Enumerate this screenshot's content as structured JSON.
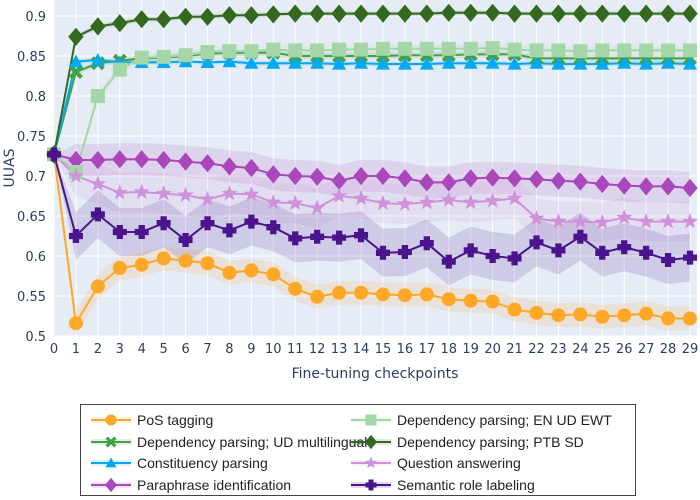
{
  "chart_data": {
    "type": "line",
    "title": "",
    "xlabel": "Fine-tuning checkpoints",
    "ylabel": "UUAS",
    "xlim": [
      0,
      29
    ],
    "ylim": [
      0.5,
      0.915
    ],
    "x": [
      0,
      1,
      2,
      3,
      4,
      5,
      6,
      7,
      8,
      9,
      10,
      11,
      12,
      13,
      14,
      15,
      16,
      17,
      18,
      19,
      20,
      21,
      22,
      23,
      24,
      25,
      26,
      27,
      28,
      29
    ],
    "xticks": [
      "0",
      "1",
      "2",
      "3",
      "4",
      "5",
      "6",
      "7",
      "8",
      "9",
      "10",
      "11",
      "12",
      "13",
      "14",
      "15",
      "16",
      "17",
      "18",
      "19",
      "20",
      "21",
      "22",
      "23",
      "24",
      "25",
      "26",
      "27",
      "28",
      "29"
    ],
    "yticks": [
      0.5,
      0.55,
      0.6,
      0.65,
      0.7,
      0.75,
      0.8,
      0.85,
      0.9
    ],
    "ytick_labels": [
      "0.5",
      "0.55",
      "0.6",
      "0.65",
      "0.7",
      "0.75",
      "0.8",
      "0.85",
      "0.9"
    ],
    "grid": true,
    "legend_position": "bottom",
    "series": [
      {
        "name": "PoS tagging",
        "color": "#ffa726",
        "marker": "circle",
        "band": 0.015,
        "values": [
          0.727,
          0.516,
          0.562,
          0.585,
          0.589,
          0.597,
          0.594,
          0.591,
          0.579,
          0.582,
          0.577,
          0.559,
          0.549,
          0.554,
          0.554,
          0.552,
          0.551,
          0.552,
          0.546,
          0.544,
          0.543,
          0.533,
          0.529,
          0.526,
          0.527,
          0.524,
          0.526,
          0.528,
          0.522,
          0.522
        ]
      },
      {
        "name": "Dependency parsing; UD multilingual",
        "color": "#43a047",
        "marker": "x",
        "band": 0.004,
        "values": [
          0.727,
          0.83,
          0.841,
          0.844,
          0.847,
          0.848,
          0.85,
          0.853,
          0.854,
          0.854,
          0.854,
          0.85,
          0.85,
          0.85,
          0.85,
          0.85,
          0.851,
          0.851,
          0.851,
          0.852,
          0.852,
          0.852,
          0.847,
          0.847,
          0.847,
          0.847,
          0.847,
          0.847,
          0.847,
          0.847
        ]
      },
      {
        "name": "Constituency parsing",
        "color": "#03a9f4",
        "marker": "triangle-up",
        "band": 0.003,
        "values": [
          0.727,
          0.843,
          0.845,
          0.842,
          0.842,
          0.842,
          0.843,
          0.842,
          0.843,
          0.841,
          0.841,
          0.841,
          0.841,
          0.84,
          0.841,
          0.84,
          0.84,
          0.84,
          0.841,
          0.841,
          0.841,
          0.84,
          0.841,
          0.84,
          0.84,
          0.84,
          0.841,
          0.84,
          0.841,
          0.84
        ]
      },
      {
        "name": "Paraphrase identification",
        "color": "#ab47bc",
        "marker": "diamond",
        "band": 0.02,
        "values": [
          0.727,
          0.72,
          0.72,
          0.721,
          0.721,
          0.72,
          0.718,
          0.716,
          0.712,
          0.71,
          0.702,
          0.7,
          0.699,
          0.694,
          0.7,
          0.7,
          0.697,
          0.692,
          0.692,
          0.697,
          0.698,
          0.697,
          0.696,
          0.694,
          0.693,
          0.69,
          0.688,
          0.687,
          0.687,
          0.685
        ]
      },
      {
        "name": "Dependency parsing; EN UD EWT",
        "color": "#a5d6a7",
        "marker": "square",
        "band": 0.006,
        "values": [
          0.727,
          0.705,
          0.8,
          0.833,
          0.848,
          0.849,
          0.851,
          0.855,
          0.856,
          0.856,
          0.858,
          0.857,
          0.857,
          0.858,
          0.858,
          0.859,
          0.859,
          0.859,
          0.859,
          0.859,
          0.86,
          0.858,
          0.857,
          0.857,
          0.856,
          0.857,
          0.857,
          0.857,
          0.857,
          0.857
        ]
      },
      {
        "name": "Dependency parsing; PTB SD",
        "color": "#33691e",
        "marker": "diamond",
        "band": 0.003,
        "values": [
          0.727,
          0.874,
          0.887,
          0.891,
          0.896,
          0.896,
          0.899,
          0.899,
          0.901,
          0.901,
          0.902,
          0.903,
          0.903,
          0.903,
          0.903,
          0.903,
          0.903,
          0.903,
          0.904,
          0.904,
          0.904,
          0.903,
          0.903,
          0.903,
          0.903,
          0.903,
          0.903,
          0.903,
          0.903,
          0.903
        ]
      },
      {
        "name": "Question answering",
        "color": "#ce93d8",
        "marker": "star",
        "band": 0.025,
        "values": [
          0.727,
          0.7,
          0.69,
          0.679,
          0.68,
          0.678,
          0.676,
          0.671,
          0.678,
          0.677,
          0.667,
          0.666,
          0.66,
          0.675,
          0.672,
          0.666,
          0.665,
          0.667,
          0.67,
          0.667,
          0.669,
          0.672,
          0.647,
          0.643,
          0.643,
          0.642,
          0.648,
          0.643,
          0.643,
          0.643
        ]
      },
      {
        "name": "Semantic role labeling",
        "color": "#4a148c",
        "marker": "cross",
        "band": 0.03,
        "values": [
          0.727,
          0.625,
          0.652,
          0.63,
          0.63,
          0.641,
          0.62,
          0.641,
          0.632,
          0.643,
          0.636,
          0.622,
          0.624,
          0.623,
          0.626,
          0.604,
          0.605,
          0.616,
          0.593,
          0.607,
          0.6,
          0.597,
          0.617,
          0.607,
          0.624,
          0.604,
          0.611,
          0.604,
          0.595,
          0.598
        ]
      }
    ],
    "legend_order": [
      0,
      4,
      1,
      5,
      2,
      6,
      3,
      7
    ]
  }
}
